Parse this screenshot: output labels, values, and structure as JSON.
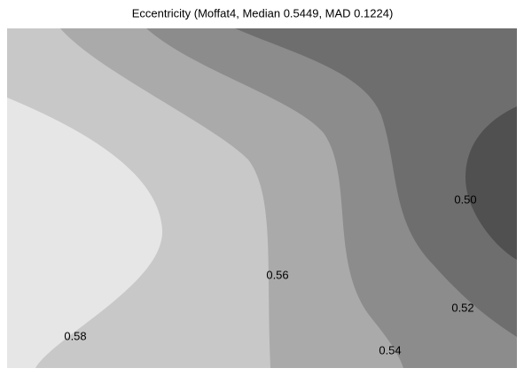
{
  "chart_data": {
    "type": "contour",
    "title": "Eccentricity (Moffat4, Median 0.5449, MAD 0.1224)",
    "levels": [
      {
        "value": 0.5,
        "label": "0.50"
      },
      {
        "value": 0.52,
        "label": "0.52"
      },
      {
        "value": 0.54,
        "label": "0.54"
      },
      {
        "value": 0.56,
        "label": "0.56"
      },
      {
        "value": 0.58,
        "label": "0.58"
      }
    ],
    "colors": [
      "#505050",
      "#6e6e6e",
      "#8c8c8c",
      "#aaaaaa",
      "#c8c8c8",
      "#e6e6e6"
    ]
  }
}
